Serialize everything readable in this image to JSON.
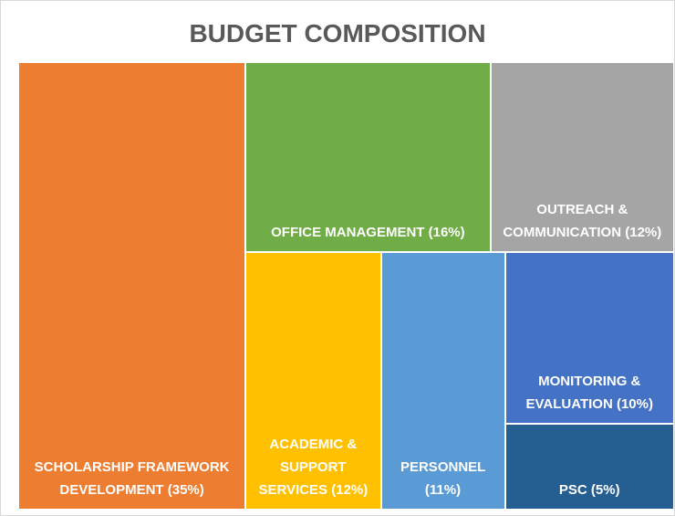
{
  "chart_data": {
    "type": "treemap",
    "title": "BUDGET COMPOSITION",
    "categories": [
      "SCHOLARSHIP FRAMEWORK DEVELOPMENT",
      "OFFICE MANAGEMENT",
      "OUTREACH & COMMUNICATION",
      "ACADEMIC & SUPPORT SERVICES",
      "PERSONNEL",
      "MONITORING & EVALUATION",
      "PSC"
    ],
    "values": [
      35,
      16,
      12,
      12,
      11,
      10,
      5
    ],
    "value_labels": [
      "(35%)",
      "(16%)",
      "(12%)",
      "(12%)",
      "(11%)",
      "(10%)",
      "(5%)"
    ],
    "colors": [
      "#ed7d31",
      "#70ad47",
      "#a5a5a5",
      "#ffc000",
      "#5b9bd5",
      "#4472c4",
      "#255e91"
    ]
  }
}
